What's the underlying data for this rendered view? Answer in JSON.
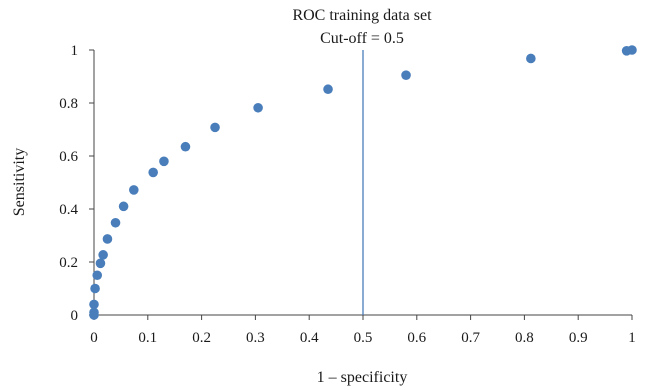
{
  "chart_data": {
    "type": "scatter",
    "title": "ROC training data set",
    "subtitle": "Cut-off = 0.5",
    "xlabel": "1 – specificity",
    "ylabel": "Sensitivity",
    "xlim": [
      0,
      1
    ],
    "ylim": [
      0,
      1
    ],
    "x_ticks": [
      "0",
      "0.1",
      "0.2",
      "0.3",
      "0.4",
      "0.5",
      "0.6",
      "0.7",
      "0.8",
      "0.9",
      "1"
    ],
    "y_ticks": [
      "0",
      "0.2",
      "0.4",
      "0.6",
      "0.8",
      "1"
    ],
    "grid": false,
    "legend": "none",
    "cutoff_line": {
      "x": 0.5,
      "color": "#4a7ebb"
    },
    "series": [
      {
        "color": "#4a7ebb",
        "points": [
          [
            0.0,
            0.0
          ],
          [
            0.0,
            0.01
          ],
          [
            0.0,
            0.04
          ],
          [
            0.002,
            0.1
          ],
          [
            0.006,
            0.15
          ],
          [
            0.012,
            0.195
          ],
          [
            0.017,
            0.227
          ],
          [
            0.025,
            0.287
          ],
          [
            0.04,
            0.348
          ],
          [
            0.055,
            0.41
          ],
          [
            0.074,
            0.472
          ],
          [
            0.11,
            0.538
          ],
          [
            0.13,
            0.58
          ],
          [
            0.17,
            0.635
          ],
          [
            0.225,
            0.708
          ],
          [
            0.305,
            0.782
          ],
          [
            0.435,
            0.852
          ],
          [
            0.58,
            0.905
          ],
          [
            0.812,
            0.968
          ],
          [
            0.99,
            0.997
          ],
          [
            1.0,
            1.0
          ]
        ]
      }
    ]
  }
}
